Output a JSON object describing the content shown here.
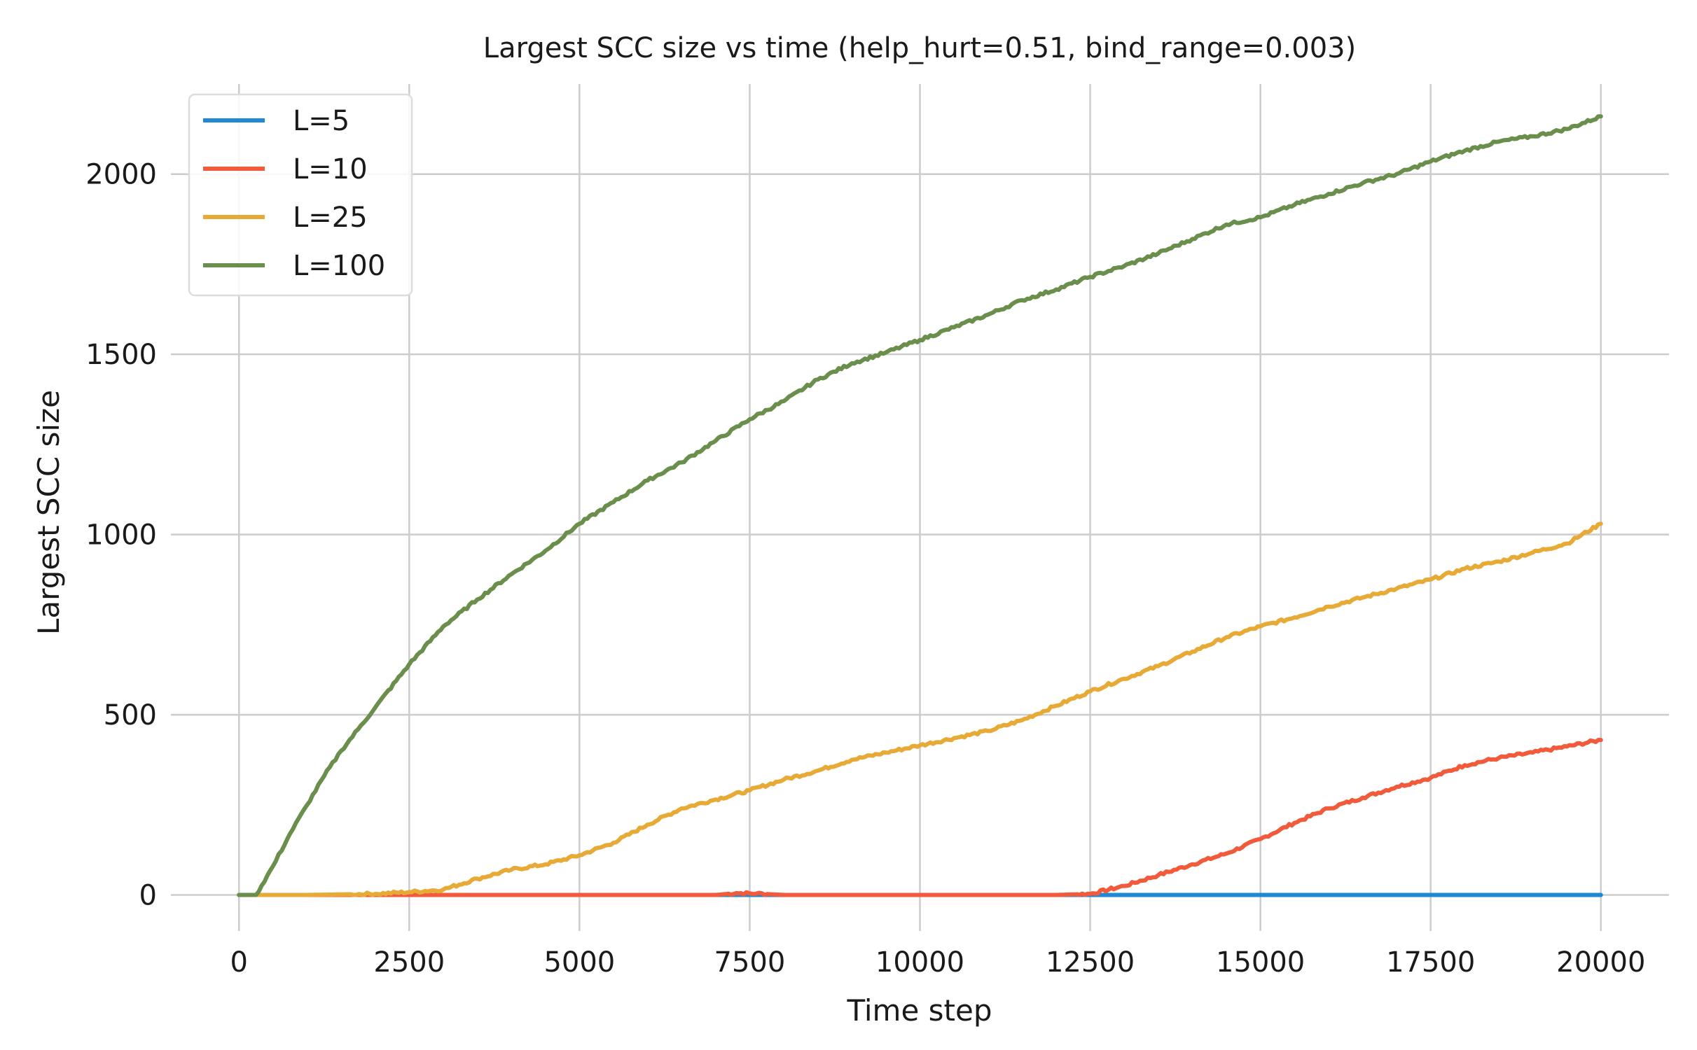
{
  "chart_data": {
    "type": "line",
    "title": "Largest SCC size vs time (help_hurt=0.51, bind_range=0.003)",
    "xlabel": "Time step",
    "ylabel": "Largest SCC size",
    "xlim": [
      -1000,
      21000
    ],
    "ylim": [
      -100,
      2250
    ],
    "xticks": [
      0,
      2500,
      5000,
      7500,
      10000,
      12500,
      15000,
      17500,
      20000
    ],
    "yticks": [
      0,
      500,
      1000,
      1500,
      2000
    ],
    "grid": true,
    "legend_position": "top-left",
    "series": [
      {
        "name": "L=5",
        "color": "#1f8ad3",
        "x": [
          0,
          2500,
          5000,
          7500,
          10000,
          12500,
          15000,
          17500,
          20000
        ],
        "y": [
          0,
          0,
          0,
          0,
          0,
          0,
          0,
          0,
          0
        ]
      },
      {
        "name": "L=10",
        "color": "#f15a3a",
        "x": [
          0,
          2500,
          5000,
          7000,
          7300,
          7600,
          8000,
          10000,
          12000,
          12500,
          13000,
          13500,
          14000,
          14500,
          15000,
          15500,
          16000,
          16500,
          17000,
          17500,
          18000,
          18500,
          19000,
          19500,
          20000
        ],
        "y": [
          0,
          0,
          0,
          0,
          5,
          4,
          0,
          0,
          0,
          3,
          25,
          55,
          85,
          115,
          155,
          200,
          240,
          270,
          300,
          325,
          360,
          380,
          395,
          412,
          430
        ]
      },
      {
        "name": "L=25",
        "color": "#e8aa36",
        "x": [
          0,
          1000,
          2000,
          2500,
          3000,
          3500,
          4000,
          4500,
          5000,
          5500,
          6000,
          6500,
          7000,
          7500,
          8000,
          8500,
          9000,
          9500,
          10000,
          10500,
          11000,
          11500,
          12000,
          12500,
          13000,
          13500,
          14000,
          14500,
          15000,
          15500,
          16000,
          16500,
          17000,
          17500,
          18000,
          18500,
          19000,
          19500,
          20000
        ],
        "y": [
          0,
          0,
          3,
          8,
          15,
          45,
          70,
          85,
          110,
          145,
          195,
          240,
          265,
          290,
          320,
          345,
          375,
          395,
          415,
          435,
          455,
          485,
          525,
          565,
          600,
          635,
          675,
          715,
          745,
          770,
          800,
          825,
          850,
          875,
          905,
          925,
          950,
          975,
          1030
        ]
      },
      {
        "name": "L=100",
        "color": "#6a8f4c",
        "x": [
          0,
          250,
          500,
          750,
          1000,
          1250,
          1500,
          1750,
          2000,
          2500,
          3000,
          3500,
          4000,
          4500,
          5000,
          5500,
          6000,
          6500,
          7000,
          7500,
          8000,
          8500,
          9000,
          9500,
          10000,
          10500,
          11000,
          11500,
          12000,
          12500,
          13000,
          13500,
          14000,
          14500,
          15000,
          15500,
          16000,
          16500,
          17000,
          17500,
          18000,
          18500,
          19000,
          19500,
          20000
        ],
        "y": [
          0,
          0,
          80,
          170,
          250,
          330,
          400,
          460,
          520,
          640,
          745,
          820,
          890,
          955,
          1030,
          1090,
          1150,
          1200,
          1260,
          1320,
          1370,
          1430,
          1475,
          1505,
          1540,
          1575,
          1610,
          1650,
          1680,
          1715,
          1745,
          1780,
          1820,
          1860,
          1880,
          1915,
          1945,
          1975,
          2000,
          2035,
          2065,
          2090,
          2105,
          2125,
          2160
        ]
      }
    ]
  }
}
